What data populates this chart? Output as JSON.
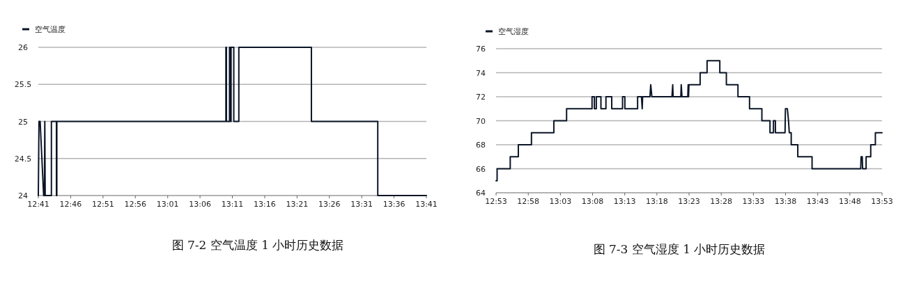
{
  "chart_data": [
    {
      "type": "line",
      "legend": "top left",
      "grid": "y",
      "xlim": [
        12.6833,
        13.6833
      ],
      "ylim": [
        24,
        26
      ],
      "xticks": [
        {
          "value": 12.6833,
          "label": "12:41"
        },
        {
          "value": 12.7667,
          "label": "12:46"
        },
        {
          "value": 12.85,
          "label": "12:51"
        },
        {
          "value": 12.9333,
          "label": "12:56"
        },
        {
          "value": 13.0167,
          "label": "13:01"
        },
        {
          "value": 13.1,
          "label": "13:06"
        },
        {
          "value": 13.1833,
          "label": "13:11"
        },
        {
          "value": 13.2667,
          "label": "13:16"
        },
        {
          "value": 13.35,
          "label": "13:21"
        },
        {
          "value": 13.4333,
          "label": "13:26"
        },
        {
          "value": 13.5167,
          "label": "13:31"
        },
        {
          "value": 13.6,
          "label": "13:36"
        },
        {
          "value": 13.6833,
          "label": "13:41"
        }
      ],
      "yticks": [
        24,
        24.5,
        25,
        25.5,
        26
      ],
      "annotations": [
        "图 7-2 空气温度 1 小时历史数据"
      ],
      "series": [
        {
          "name": "空气温度",
          "color": "#0b1526",
          "x": [
            12.6833,
            12.685,
            12.688,
            12.697,
            12.699,
            12.7,
            12.701,
            12.717,
            12.717,
            12.73,
            12.73,
            12.731,
            12.731,
            13.1667,
            13.1667,
            13.168,
            13.168,
            13.176,
            13.176,
            13.178,
            13.178,
            13.18,
            13.18,
            13.187,
            13.187,
            13.2,
            13.2,
            13.387,
            13.387,
            13.558,
            13.558,
            13.6833
          ],
          "values": [
            24,
            25,
            25,
            24,
            24,
            25,
            24,
            24,
            25,
            25,
            24,
            24,
            25,
            25,
            26,
            26,
            25,
            25,
            26,
            26,
            25,
            25,
            26,
            26,
            25,
            25,
            26,
            26,
            25,
            25,
            24,
            24
          ]
        }
      ]
    },
    {
      "type": "line",
      "legend": "top left",
      "grid": "y",
      "xlim": [
        12.8833,
        13.8833
      ],
      "ylim": [
        64,
        76
      ],
      "xticks": [
        {
          "value": 12.8833,
          "label": "12:53"
        },
        {
          "value": 12.9667,
          "label": "12:58"
        },
        {
          "value": 13.05,
          "label": "13:03"
        },
        {
          "value": 13.1333,
          "label": "13:08"
        },
        {
          "value": 13.2167,
          "label": "13:13"
        },
        {
          "value": 13.3,
          "label": "13:18"
        },
        {
          "value": 13.3833,
          "label": "13:23"
        },
        {
          "value": 13.4667,
          "label": "13:28"
        },
        {
          "value": 13.55,
          "label": "13:33"
        },
        {
          "value": 13.6333,
          "label": "13:38"
        },
        {
          "value": 13.7167,
          "label": "13:43"
        },
        {
          "value": 13.8,
          "label": "13:48"
        },
        {
          "value": 13.8833,
          "label": "13:53"
        }
      ],
      "yticks": [
        64,
        66,
        68,
        70,
        72,
        74,
        76
      ],
      "annotations": [
        "图 7-3 空气湿度 1 小时历史数据"
      ],
      "series": [
        {
          "name": "空气湿度",
          "color": "#0b1526",
          "x": [
            12.8833,
            12.886,
            12.886,
            12.92,
            12.92,
            12.941,
            12.941,
            12.975,
            12.975,
            13.033,
            13.033,
            13.066,
            13.066,
            13.132,
            13.132,
            13.138,
            13.138,
            13.143,
            13.143,
            13.155,
            13.155,
            13.168,
            13.168,
            13.183,
            13.183,
            13.211,
            13.211,
            13.217,
            13.217,
            13.25,
            13.25,
            13.26,
            13.262,
            13.263,
            13.282,
            13.284,
            13.287,
            13.339,
            13.341,
            13.342,
            13.362,
            13.363,
            13.365,
            13.38,
            13.381,
            13.382,
            13.383,
            13.412,
            13.412,
            13.43,
            13.43,
            13.463,
            13.463,
            13.48,
            13.48,
            13.51,
            13.51,
            13.54,
            13.54,
            13.572,
            13.572,
            13.593,
            13.593,
            13.602,
            13.602,
            13.607,
            13.607,
            13.632,
            13.633,
            13.638,
            13.641,
            13.643,
            13.648,
            13.648,
            13.665,
            13.665,
            13.702,
            13.702,
            13.828,
            13.829,
            13.832,
            13.833,
            13.842,
            13.842,
            13.854,
            13.854,
            13.866,
            13.866,
            13.8833
          ],
          "values": [
            65,
            65,
            66,
            66,
            67,
            67,
            68,
            68,
            69,
            69,
            70,
            70,
            71,
            71,
            72,
            72,
            71,
            71,
            72,
            72,
            71,
            71,
            72,
            72,
            71,
            71,
            72,
            72,
            71,
            71,
            72,
            72,
            71,
            72,
            72,
            73,
            72,
            72,
            73,
            72,
            72,
            73,
            72,
            72,
            73,
            72,
            73,
            73,
            74,
            74,
            75,
            75,
            74,
            74,
            73,
            73,
            72,
            72,
            71,
            71,
            70,
            70,
            69,
            69,
            70,
            70,
            69,
            69,
            71,
            71,
            70,
            69,
            69,
            68,
            68,
            67,
            67,
            66,
            66,
            67,
            67,
            66,
            66,
            67,
            67,
            68,
            68,
            69,
            69
          ]
        }
      ]
    }
  ]
}
